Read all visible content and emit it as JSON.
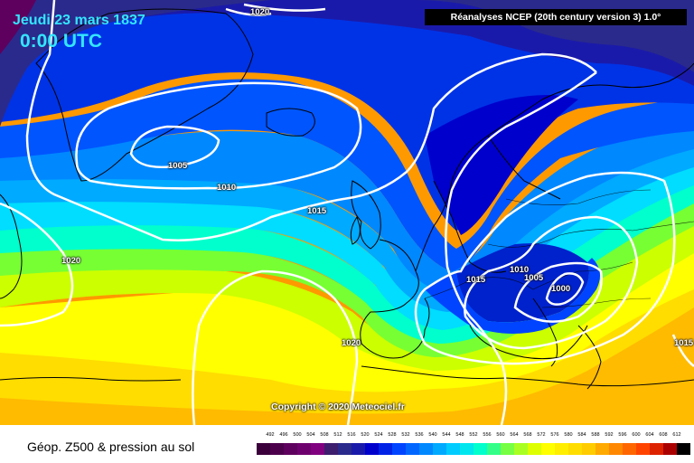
{
  "header": {
    "date": "Jeudi 23 mars 1837",
    "time": "0:00 UTC",
    "source": "Réanalyses NCEP (20th century version 3) 1.0°"
  },
  "footer": {
    "title": "Géop. Z500 & pression au sol",
    "copyright": "Copyright © 2020 Meteociel.fr"
  },
  "isobar_labels": [
    "1020",
    "1005",
    "1010",
    "1015",
    "1020",
    "1020",
    "1015",
    "1010",
    "1005",
    "1000",
    "1015"
  ],
  "legend": {
    "values": [
      "492",
      "496",
      "500",
      "504",
      "508",
      "512",
      "516",
      "520",
      "524",
      "528",
      "532",
      "536",
      "540",
      "544",
      "548",
      "552",
      "556",
      "560",
      "564",
      "568",
      "572",
      "576",
      "580",
      "584",
      "588",
      "592",
      "596",
      "600",
      "604",
      "608",
      "612"
    ],
    "colors": [
      "#3b003b",
      "#4c004c",
      "#5e005e",
      "#6e006e",
      "#800080",
      "#3d1d6e",
      "#2a2a8c",
      "#1a1aaa",
      "#0000cd",
      "#0022e6",
      "#0044ff",
      "#0066ff",
      "#0088ff",
      "#00aaff",
      "#00ccff",
      "#00e6ee",
      "#00ffcc",
      "#33ff88",
      "#77ff44",
      "#aaff22",
      "#ddff00",
      "#ffff00",
      "#ffee00",
      "#ffdd00",
      "#ffcc00",
      "#ffaa00",
      "#ff8800",
      "#ff6600",
      "#ff4400",
      "#dd2200",
      "#aa0000",
      "#000000"
    ]
  },
  "colors": {
    "title_cyan": "#33e6ff",
    "isobar": "#ffffff",
    "coastline": "#000000"
  }
}
